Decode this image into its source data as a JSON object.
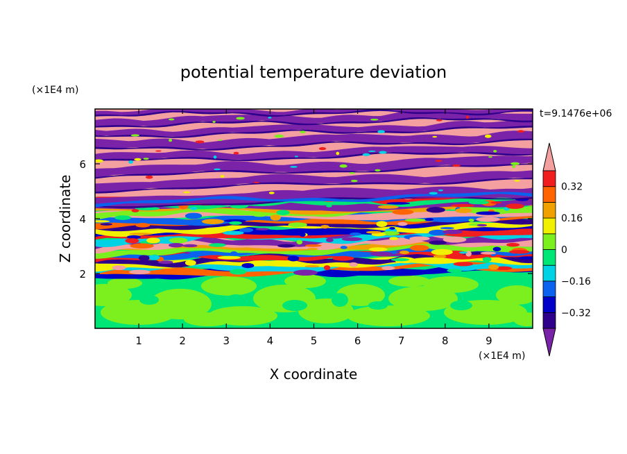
{
  "chart_data": {
    "type": "heatmap",
    "title": "potential temperature deviation",
    "xlabel": "X coordinate",
    "ylabel": "Z coordinate",
    "x_unit": "(×1E4 m)",
    "y_unit": "(×1E4 m)",
    "time_label": "t=9.1476e+06",
    "xlim": [
      0,
      10
    ],
    "ylim": [
      0,
      8
    ],
    "x_ticks": [
      1,
      2,
      3,
      4,
      5,
      6,
      7,
      8,
      9
    ],
    "y_ticks": [
      2,
      4,
      6
    ],
    "colorbar": {
      "levels": [
        -0.48,
        -0.4,
        -0.32,
        -0.24,
        -0.16,
        -0.08,
        0,
        0.08,
        0.16,
        0.24,
        0.32,
        0.4,
        0.48
      ],
      "labels": [
        "0.32",
        "0.16",
        "0",
        "−0.16",
        "−0.32"
      ],
      "label_values": [
        0.32,
        0.16,
        0,
        -0.16,
        -0.32
      ],
      "colors": [
        "#7a22a8",
        "#2e008c",
        "#0000c8",
        "#0a62ee",
        "#00d2e6",
        "#00e676",
        "#7cf01e",
        "#f0f000",
        "#f0a000",
        "#ff6400",
        "#f01e1e",
        "#f5a0a0"
      ],
      "extend": "both"
    },
    "layers": [
      {
        "z_min": 0.0,
        "z_max": 2.0,
        "pattern": "lower blobs of 0 to 0.08 (green / light green)"
      },
      {
        "z_min": 2.0,
        "z_max": 4.8,
        "pattern": "mixed wavy bands spanning full color range"
      },
      {
        "z_min": 4.8,
        "z_max": 8.0,
        "pattern": "tilted alternating bands of ≥0.48 (pink) and ≤-0.48 (purple)"
      }
    ]
  }
}
